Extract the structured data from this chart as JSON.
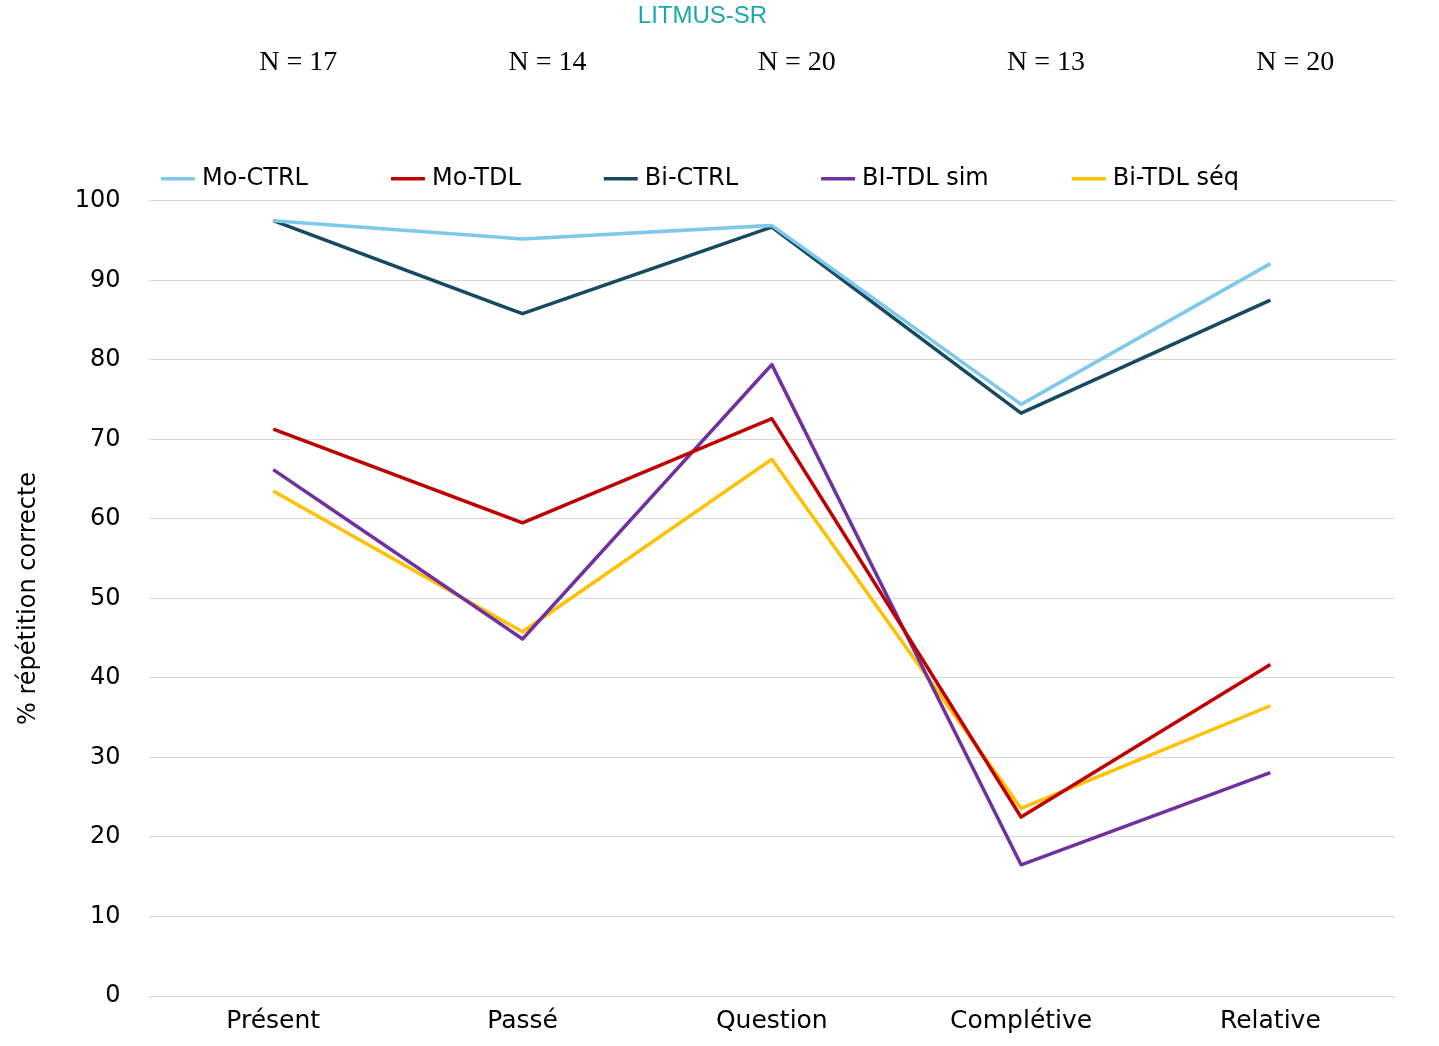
{
  "chart_data": {
    "type": "line",
    "title": "LITMUS-SR",
    "ylabel": "% répétition correcte",
    "categories": [
      "Présent",
      "Passé",
      "Question",
      "Complétive",
      "Relative"
    ],
    "series": [
      {
        "name": "Mo-CTRL",
        "color": "#7ec8ea",
        "values": [
          97.5,
          95.2,
          96.9,
          74.4,
          92.1
        ]
      },
      {
        "name": "Mo-TDL",
        "color": "#c00000",
        "values": [
          71.3,
          59.5,
          72.6,
          22.5,
          41.7
        ]
      },
      {
        "name": "Bi-CTRL",
        "color": "#174a5e",
        "values": [
          97.5,
          85.8,
          96.7,
          73.3,
          87.5
        ]
      },
      {
        "name": "BI-TDL sim",
        "color": "#7030a0",
        "values": [
          66.2,
          44.9,
          79.4,
          16.5,
          28.1
        ]
      },
      {
        "name": "Bi-TDL séq",
        "color": "#ffc000",
        "values": [
          63.5,
          45.8,
          67.5,
          23.6,
          36.5
        ]
      }
    ],
    "annotations": [
      "N = 17",
      "N = 14",
      "N = 20",
      "N = 13",
      "N = 20"
    ],
    "ylim": [
      0,
      100
    ],
    "yticks": [
      0,
      10,
      20,
      30,
      40,
      50,
      60,
      70,
      80,
      90,
      100
    ],
    "grid": "y",
    "legend": "top",
    "marker": "none",
    "line_style": "solid"
  }
}
